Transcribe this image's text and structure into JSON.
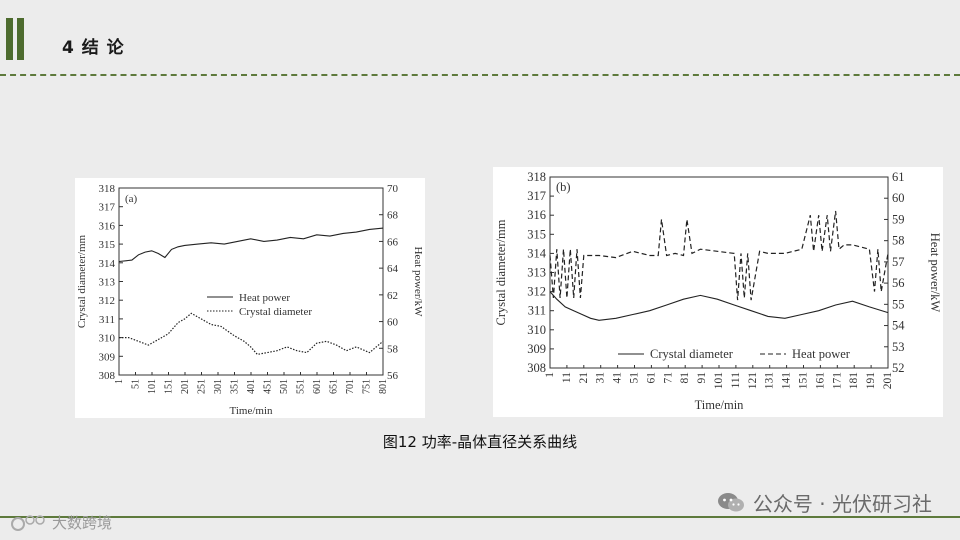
{
  "header": {
    "title": "4 结 论"
  },
  "caption": "图12 功率-晶体直径关系曲线",
  "watermark": {
    "account": "公众号 · 光伏研习社",
    "left_text": "大数跨境",
    "wechat_icon": "wechat-icon",
    "left_icon": "ic-logo-icon"
  },
  "colors": {
    "accent": "#4d6b2e",
    "divider": "#5e7a3c"
  },
  "chart_data": [
    {
      "type": "line",
      "panel_label": "(a)",
      "xlabel": "Time/min",
      "ylabel": "Crystal diameter/mm",
      "ylabel_right": "Heat power/kW",
      "x_ticks": [
        "1",
        "51",
        "101",
        "151",
        "201",
        "251",
        "301",
        "351",
        "401",
        "451",
        "501",
        "551",
        "601",
        "651",
        "701",
        "751",
        "801"
      ],
      "y_ticks": [
        308,
        309,
        310,
        311,
        312,
        313,
        314,
        315,
        316,
        317,
        318
      ],
      "y2_ticks": [
        56,
        58,
        60,
        62,
        64,
        66,
        68,
        70
      ],
      "xlim": [
        1,
        801
      ],
      "ylim": [
        308,
        318
      ],
      "y2lim": [
        56,
        70
      ],
      "legend": [
        "Heat power",
        "Crystal diameter"
      ],
      "legend_position": "center",
      "series": [
        {
          "name": "Heat power",
          "axis": "right",
          "style": "solid",
          "x": [
            1,
            40,
            60,
            80,
            100,
            120,
            140,
            160,
            180,
            200,
            240,
            280,
            320,
            360,
            400,
            440,
            480,
            520,
            560,
            600,
            640,
            680,
            720,
            760,
            801
          ],
          "values": [
            64.5,
            64.6,
            65.0,
            65.2,
            65.3,
            65.1,
            64.8,
            65.4,
            65.6,
            65.7,
            65.8,
            65.9,
            65.8,
            66.0,
            66.2,
            66.0,
            66.1,
            66.3,
            66.2,
            66.5,
            66.4,
            66.6,
            66.7,
            66.9,
            67.0
          ]
        },
        {
          "name": "Crystal diameter",
          "axis": "left",
          "style": "dotted",
          "x": [
            1,
            30,
            60,
            90,
            120,
            150,
            180,
            200,
            220,
            250,
            280,
            310,
            350,
            380,
            400,
            420,
            450,
            480,
            510,
            540,
            570,
            600,
            630,
            660,
            690,
            720,
            760,
            801
          ],
          "values": [
            310.0,
            310.0,
            309.8,
            309.6,
            309.9,
            310.2,
            310.8,
            311.0,
            311.3,
            311.0,
            310.7,
            310.6,
            310.1,
            309.8,
            309.5,
            309.1,
            309.2,
            309.3,
            309.5,
            309.3,
            309.2,
            309.7,
            309.8,
            309.6,
            309.3,
            309.5,
            309.2,
            309.8
          ]
        }
      ]
    },
    {
      "type": "line",
      "panel_label": "(b)",
      "xlabel": "Time/min",
      "ylabel": "Crystal diameter/mm",
      "ylabel_right": "Heat power/kW",
      "x_ticks": [
        "1",
        "11",
        "21",
        "31",
        "41",
        "51",
        "61",
        "71",
        "81",
        "91",
        "101",
        "111",
        "121",
        "131",
        "141",
        "151",
        "161",
        "171",
        "181",
        "191",
        "201"
      ],
      "y_ticks": [
        308,
        309,
        310,
        311,
        312,
        313,
        314,
        315,
        316,
        317,
        318
      ],
      "y2_ticks": [
        52,
        53,
        54,
        55,
        56,
        57,
        58,
        59,
        60,
        61
      ],
      "xlim": [
        1,
        201
      ],
      "ylim": [
        308,
        318
      ],
      "y2lim": [
        52,
        61
      ],
      "legend": [
        "Crystal diameter",
        "Heat power"
      ],
      "legend_position": "bottom",
      "series": [
        {
          "name": "Crystal diameter",
          "axis": "left",
          "style": "solid",
          "x": [
            1,
            5,
            10,
            15,
            20,
            25,
            30,
            40,
            50,
            60,
            70,
            80,
            90,
            100,
            110,
            120,
            130,
            140,
            150,
            160,
            170,
            180,
            190,
            201
          ],
          "values": [
            312.0,
            311.6,
            311.2,
            311.0,
            310.8,
            310.6,
            310.5,
            310.6,
            310.8,
            311.0,
            311.3,
            311.6,
            311.8,
            311.6,
            311.3,
            311.0,
            310.7,
            310.6,
            310.8,
            311.0,
            311.3,
            311.5,
            311.2,
            310.9
          ]
        },
        {
          "name": "Heat power",
          "axis": "right",
          "style": "dashed",
          "x": [
            1,
            3,
            5,
            7,
            9,
            11,
            13,
            15,
            17,
            19,
            21,
            30,
            40,
            50,
            60,
            65,
            67,
            70,
            75,
            80,
            82,
            85,
            90,
            100,
            110,
            112,
            114,
            116,
            118,
            120,
            125,
            130,
            140,
            150,
            155,
            157,
            160,
            162,
            165,
            167,
            170,
            172,
            175,
            180,
            190,
            193,
            195,
            197,
            201
          ],
          "values": [
            57.3,
            55.3,
            57.6,
            55.3,
            57.6,
            55.3,
            57.6,
            55.3,
            57.6,
            55.3,
            57.3,
            57.3,
            57.2,
            57.5,
            57.3,
            57.3,
            59.0,
            57.3,
            57.4,
            57.3,
            59.0,
            57.4,
            57.6,
            57.5,
            57.4,
            55.2,
            57.4,
            55.3,
            57.4,
            55.2,
            57.5,
            57.4,
            57.4,
            57.6,
            59.2,
            57.5,
            59.2,
            57.5,
            59.2,
            57.5,
            59.4,
            57.6,
            57.8,
            57.8,
            57.6,
            55.6,
            57.6,
            55.6,
            57.4
          ]
        }
      ]
    }
  ]
}
